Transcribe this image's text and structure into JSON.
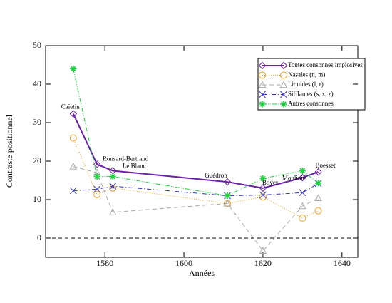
{
  "chart_data": {
    "type": "line",
    "x_label": "Années",
    "y_label": "Contraste positionnel",
    "x": [
      1572,
      1578,
      1582,
      1611,
      1620,
      1630,
      1634
    ],
    "point_labels": [
      "Caietin",
      "Ronsard-Bertrand",
      "Le Blanc",
      "Guédron",
      "Boyer",
      "Moulinié",
      "Boesset"
    ],
    "series": [
      {
        "name": "Toutes consonnes implosives",
        "color": "#6a1fa8",
        "marker": "diamond",
        "dash": "solid",
        "values": [
          32.3,
          19.2,
          17.5,
          14.6,
          13,
          15.7,
          17.2
        ]
      },
      {
        "name": "Nasales (n, m)",
        "color": "#f0a020",
        "marker": "circle",
        "dash": "dotted",
        "values": [
          26,
          11.3,
          13,
          9,
          10.7,
          5.2,
          7.1
        ]
      },
      {
        "name": "Liquides (l, r)",
        "color": "#a8a8a8",
        "marker": "triangle",
        "dash": "dashed",
        "values": [
          18.6,
          17,
          6.7,
          9,
          -3.3,
          8.3,
          10.4
        ]
      },
      {
        "name": "Sifflantes (s, x, z)",
        "color": "#3030c0",
        "marker": "x",
        "dash": "dashdot",
        "values": [
          12.3,
          12.7,
          13.5,
          11,
          11.2,
          11.8,
          14.2
        ]
      },
      {
        "name": "Autres consonnes",
        "color": "#20d040",
        "marker": "star",
        "dash": "dashdotdot",
        "values": [
          44,
          16,
          16,
          11,
          15.5,
          17.5,
          14.3
        ]
      }
    ],
    "xlim": [
      1565,
      1644
    ],
    "xticks": [
      1580,
      1600,
      1620,
      1640
    ],
    "ylim": [
      -5,
      50
    ],
    "yticks": [
      0,
      10,
      20,
      30,
      40,
      50
    ],
    "reference_line": 0,
    "legend": "upper right"
  }
}
